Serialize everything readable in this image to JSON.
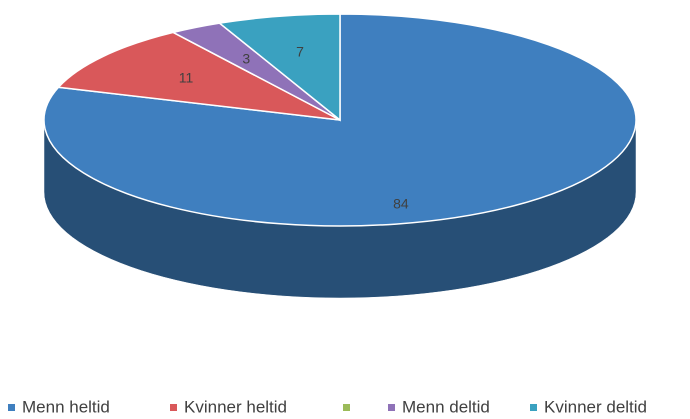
{
  "chart_data": {
    "type": "pie3d",
    "categories": [
      "Menn heltid",
      "Kvinner heltid",
      null,
      "Menn deltid",
      "Kvinner deltid"
    ],
    "values": [
      84,
      11,
      0,
      3,
      7
    ],
    "colors": [
      "#3f7fbf",
      "#d9585a",
      "#9bbb59",
      "#8f72b8",
      "#3aa1c0"
    ],
    "start_angle": 90,
    "direction": "clockwise"
  }
}
